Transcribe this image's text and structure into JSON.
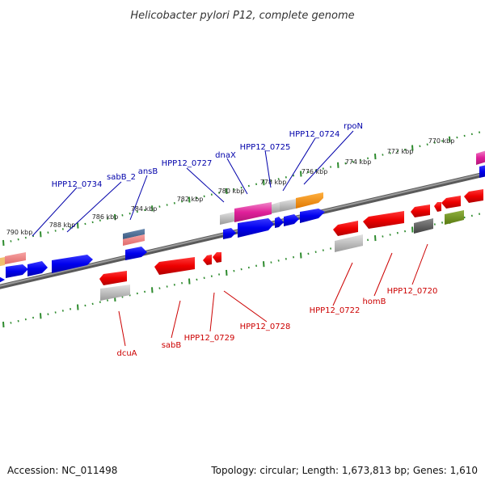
{
  "title": "Helicobacter pylori P12, complete genome",
  "footer": {
    "accession": "Accession: NC_011498",
    "summary": "Topology: circular; Length: 1,673,813 bp; Genes: 1,610"
  },
  "colors": {
    "forward_label": "#0000aa",
    "reverse_label": "#cc0000",
    "tick": "#2e8b2e",
    "backbone": "#7a7a7a"
  },
  "scale_ticks": [
    "790 kbp",
    "788 kbp",
    "786 kbp",
    "784 kbp",
    "782 kbp",
    "780 kbp",
    "778 kbp",
    "776 kbp",
    "774 kbp",
    "772 kbp",
    "770 kbp"
  ],
  "forward_labels": [
    "HPP12_0734",
    "sabB_2",
    "ansB",
    "HPP12_0727",
    "dnaX",
    "HPP12_0725",
    "HPP12_0724",
    "rpoN"
  ],
  "reverse_labels": [
    "dcuA",
    "sabB",
    "HPP12_0729",
    "HPP12_0728",
    "HPP12_0722",
    "homB",
    "HPP12_0720"
  ]
}
